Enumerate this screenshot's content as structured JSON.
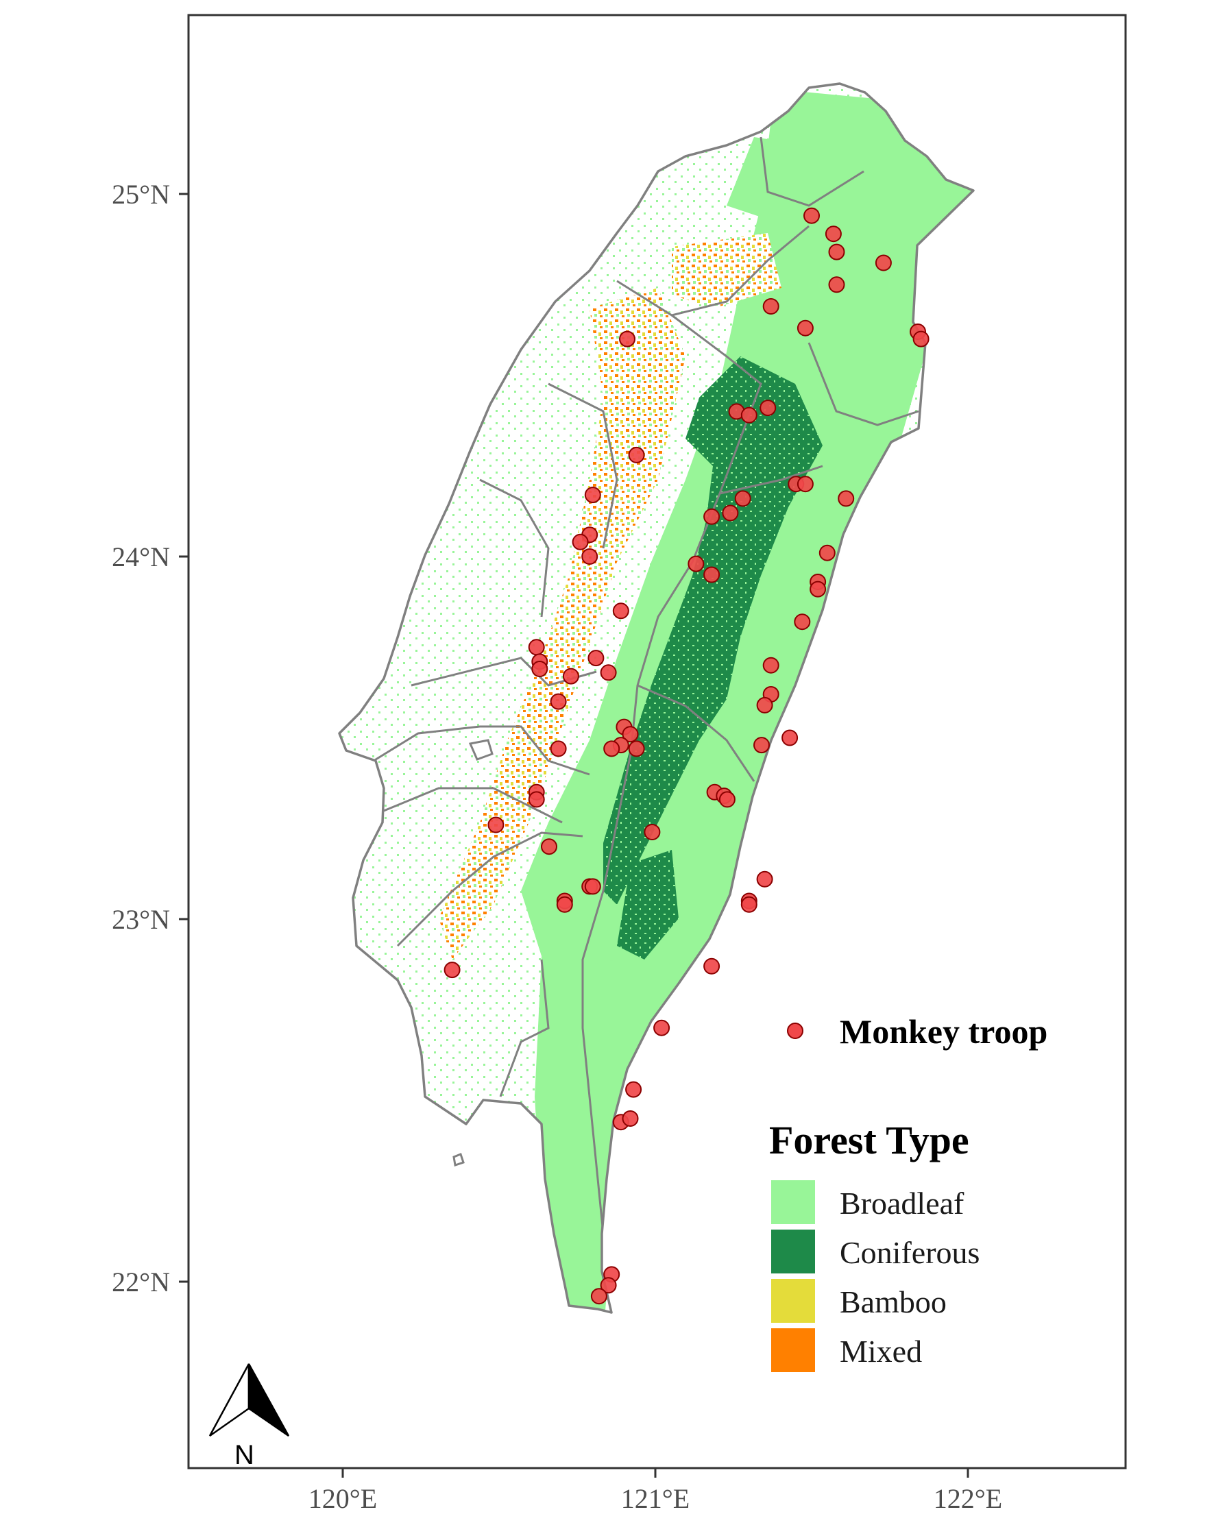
{
  "map": {
    "x_axis": {
      "ticks": [
        120,
        121,
        122
      ],
      "labels": [
        "120°E",
        "121°E",
        "122°E"
      ],
      "range": [
        119.5,
        122.5
      ]
    },
    "y_axis": {
      "ticks": [
        22,
        23,
        24,
        25
      ],
      "labels": [
        "22°N",
        "23°N",
        "24°N",
        "25°N"
      ],
      "range": [
        21.5,
        25.5
      ]
    },
    "north_arrow": {
      "label": "N"
    }
  },
  "legend": {
    "points": {
      "label": "Monkey troop",
      "fill": "#f0484a",
      "stroke": "#8b0000"
    },
    "forest_title": "Forest Type",
    "forest_types": [
      {
        "label": "Broadleaf",
        "color": "#98f598"
      },
      {
        "label": "Coniferous",
        "color": "#1e8a49"
      },
      {
        "label": "Bamboo",
        "color": "#e4dc3a"
      },
      {
        "label": "Mixed",
        "color": "#ff8000"
      }
    ]
  },
  "chart_data": {
    "type": "scatter",
    "xlabel": "",
    "ylabel": "",
    "xlim": [
      119.5,
      122.5
    ],
    "ylim": [
      21.5,
      25.5
    ],
    "series": [
      {
        "name": "Monkey troop",
        "points": [
          [
            121.5,
            24.94
          ],
          [
            121.57,
            24.89
          ],
          [
            121.58,
            24.84
          ],
          [
            121.73,
            24.81
          ],
          [
            121.58,
            24.75
          ],
          [
            121.37,
            24.69
          ],
          [
            121.48,
            24.63
          ],
          [
            121.84,
            24.62
          ],
          [
            121.85,
            24.6
          ],
          [
            120.91,
            24.6
          ],
          [
            121.36,
            24.41
          ],
          [
            121.26,
            24.4
          ],
          [
            121.3,
            24.39
          ],
          [
            120.94,
            24.28
          ],
          [
            121.45,
            24.2
          ],
          [
            121.48,
            24.2
          ],
          [
            121.61,
            24.16
          ],
          [
            120.8,
            24.17
          ],
          [
            121.28,
            24.16
          ],
          [
            121.24,
            24.12
          ],
          [
            121.18,
            24.11
          ],
          [
            120.79,
            24.06
          ],
          [
            120.76,
            24.04
          ],
          [
            121.55,
            24.01
          ],
          [
            120.79,
            24.0
          ],
          [
            121.13,
            23.98
          ],
          [
            121.18,
            23.95
          ],
          [
            121.52,
            23.93
          ],
          [
            121.52,
            23.91
          ],
          [
            120.89,
            23.85
          ],
          [
            121.47,
            23.82
          ],
          [
            120.62,
            23.75
          ],
          [
            120.63,
            23.71
          ],
          [
            120.63,
            23.69
          ],
          [
            120.81,
            23.72
          ],
          [
            121.37,
            23.7
          ],
          [
            120.73,
            23.67
          ],
          [
            120.85,
            23.68
          ],
          [
            120.69,
            23.6
          ],
          [
            121.37,
            23.62
          ],
          [
            121.35,
            23.59
          ],
          [
            120.9,
            23.53
          ],
          [
            120.92,
            23.51
          ],
          [
            121.43,
            23.5
          ],
          [
            120.89,
            23.48
          ],
          [
            120.86,
            23.47
          ],
          [
            120.94,
            23.47
          ],
          [
            120.69,
            23.47
          ],
          [
            121.34,
            23.48
          ],
          [
            120.62,
            23.35
          ],
          [
            120.62,
            23.33
          ],
          [
            121.19,
            23.35
          ],
          [
            121.22,
            23.34
          ],
          [
            121.23,
            23.33
          ],
          [
            120.49,
            23.26
          ],
          [
            120.99,
            23.24
          ],
          [
            120.66,
            23.2
          ],
          [
            121.35,
            23.11
          ],
          [
            120.79,
            23.09
          ],
          [
            120.8,
            23.09
          ],
          [
            120.71,
            23.05
          ],
          [
            120.71,
            23.04
          ],
          [
            121.3,
            23.05
          ],
          [
            121.3,
            23.04
          ],
          [
            121.18,
            22.87
          ],
          [
            120.35,
            22.86
          ],
          [
            121.02,
            22.7
          ],
          [
            120.93,
            22.53
          ],
          [
            120.89,
            22.44
          ],
          [
            120.92,
            22.45
          ],
          [
            120.86,
            22.02
          ],
          [
            120.85,
            21.99
          ],
          [
            120.82,
            21.96
          ]
        ]
      }
    ]
  }
}
